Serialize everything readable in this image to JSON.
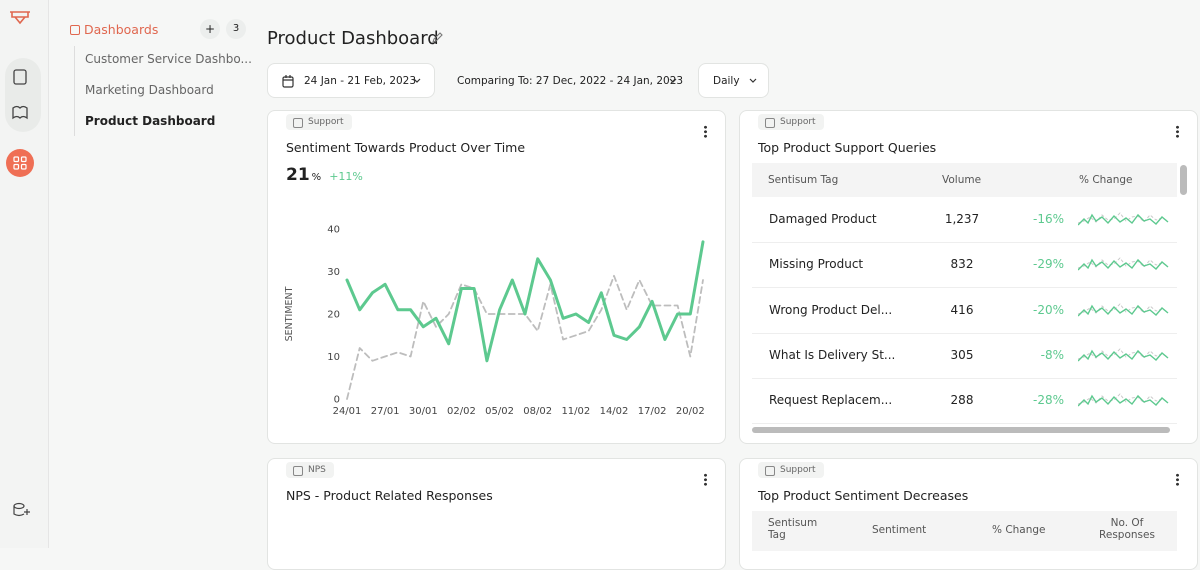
{
  "nav": {
    "section": "Dashboards",
    "add": "+",
    "count": "3",
    "items": [
      "Customer Service Dashbo...",
      "Marketing Dashboard",
      "Product Dashboard"
    ]
  },
  "header": {
    "title": "Product Dashboard"
  },
  "filters": {
    "date_range": "24 Jan - 21 Feb, 2023",
    "comparing": "Comparing To: 27 Dec, 2022 - 24 Jan, 2023",
    "granularity": "Daily"
  },
  "cards": [
    {
      "tag": "Support",
      "title": "Sentiment Towards Product Over Time",
      "metric": {
        "value": "21",
        "unit": "%",
        "change": "+11%"
      },
      "chart_data": {
        "type": "line",
        "y_label": "SENTIMENT",
        "categories": [
          "24/01",
          null,
          null,
          "27/01",
          null,
          null,
          "30/01",
          null,
          null,
          "02/02",
          null,
          null,
          "05/02",
          null,
          null,
          "08/02",
          null,
          null,
          "11/02",
          null,
          null,
          "14/02",
          null,
          null,
          "17/02",
          null,
          null,
          "20/02",
          null
        ],
        "series": [
          {
            "color": "#bdbdbd",
            "dashed": true,
            "values": [
              0,
              12,
              9,
              10,
              11,
              10,
              23,
              17,
              20,
              27,
              26,
              20,
              20,
              20,
              20,
              16,
              27,
              14,
              15,
              16,
              21,
              29,
              21,
              28,
              22,
              22,
              22,
              10,
              28
            ]
          },
          {
            "color": "#5dc98f",
            "dashed": false,
            "values": [
              28,
              21,
              25,
              27,
              21,
              21,
              17,
              19,
              13,
              26,
              26,
              9,
              21,
              28,
              20,
              33,
              28,
              19,
              20,
              18,
              25,
              15,
              14,
              17,
              23,
              14,
              20,
              20,
              37
            ]
          }
        ],
        "ylim": [
          0,
          40
        ],
        "yticks": [
          0,
          10,
          20,
          30,
          40
        ],
        "grid": false
      }
    },
    {
      "tag": "Support",
      "title": "Top Product Support Queries",
      "table": {
        "columns": [
          "Sentisum Tag",
          "Volume",
          "% Change"
        ],
        "rows": [
          [
            "Damaged Product",
            "1,237",
            "-16%"
          ],
          [
            "Missing Product",
            "832",
            "-29%"
          ],
          [
            "Wrong Product Del...",
            "416",
            "-20%"
          ],
          [
            "What Is Delivery St...",
            "305",
            "-8%"
          ],
          [
            "Request Replacem...",
            "288",
            "-28%"
          ]
        ]
      }
    },
    {
      "tag": "NPS",
      "title": "NPS - Product Related Responses"
    },
    {
      "tag": "Support",
      "title": "Top Product Sentiment Decreases",
      "table": {
        "columns": [
          "Sentisum Tag",
          "Sentiment",
          "% Change",
          "No. Of Responses"
        ]
      }
    }
  ]
}
